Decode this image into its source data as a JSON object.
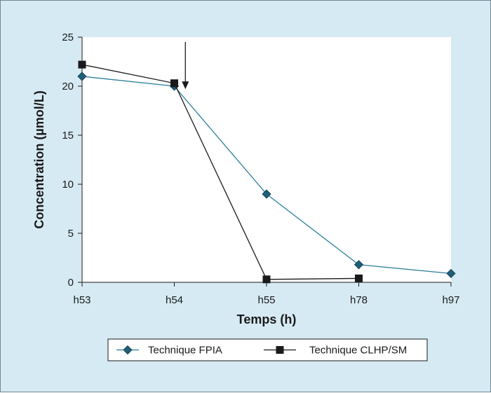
{
  "chart_data": {
    "type": "line",
    "title": "",
    "xlabel": "Temps (h)",
    "ylabel": "Concentration (µmol/L)",
    "categories": [
      "h53",
      "h54",
      "h55",
      "h78",
      "h97"
    ],
    "ylim": [
      0,
      25
    ],
    "yticks": [
      0,
      5,
      10,
      15,
      20,
      25
    ],
    "grid": false,
    "legend_position": "bottom",
    "series": [
      {
        "name": "Technique FPIA",
        "marker": "diamond",
        "color": "#2a7f99",
        "marker_color": "#1e5f78",
        "values": [
          21,
          20,
          9,
          1.8,
          0.9
        ]
      },
      {
        "name": "Technique CLHP/SM",
        "marker": "square",
        "color": "#1a1a1a",
        "marker_color": "#1a1a1a",
        "values": [
          22.2,
          20.3,
          0.3,
          0.4,
          null
        ]
      }
    ],
    "annotations": [
      {
        "type": "arrow",
        "x_between": [
          "h54",
          "h55"
        ],
        "x_fraction": 0.12,
        "y_from": 24.5,
        "y_to": 19.7
      }
    ],
    "colors": {
      "background": "#d6eaf3",
      "plot_area": "#ffffff",
      "axis": "#1a1a1a"
    }
  }
}
